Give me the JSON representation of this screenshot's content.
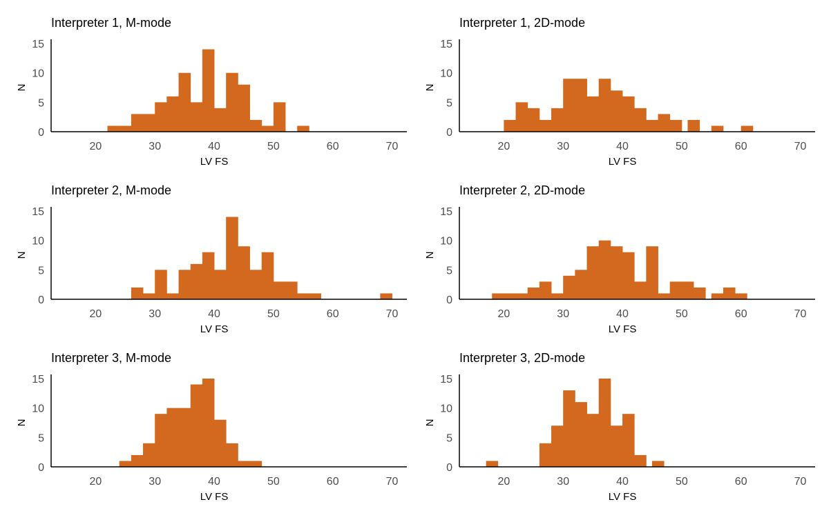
{
  "figure": {
    "bar_color": "#d2691e",
    "axis_color": "#000000",
    "tick_color": "#4d4d4d"
  },
  "chart_data": [
    {
      "type": "bar",
      "title": "Interpreter 1, M-mode",
      "xlabel": "LV FS",
      "ylabel": "N",
      "xlim": [
        12.5,
        72.5
      ],
      "ylim": [
        0,
        15
      ],
      "xticks": [
        20,
        30,
        40,
        50,
        60,
        70
      ],
      "yticks": [
        0,
        5,
        10,
        15
      ],
      "bin_width": 2,
      "bins": [
        [
          22,
          1
        ],
        [
          24,
          1
        ],
        [
          26,
          3
        ],
        [
          28,
          3
        ],
        [
          30,
          5
        ],
        [
          32,
          6
        ],
        [
          34,
          10
        ],
        [
          36,
          5
        ],
        [
          38,
          14
        ],
        [
          40,
          4
        ],
        [
          42,
          10
        ],
        [
          44,
          8
        ],
        [
          46,
          2
        ],
        [
          48,
          1
        ],
        [
          50,
          5
        ],
        [
          54,
          1
        ]
      ]
    },
    {
      "type": "bar",
      "title": "Interpreter 1, 2D-mode",
      "xlabel": "LV FS",
      "ylabel": "N",
      "xlim": [
        12.5,
        72.5
      ],
      "ylim": [
        0,
        15
      ],
      "xticks": [
        20,
        30,
        40,
        50,
        60,
        70
      ],
      "yticks": [
        0,
        5,
        10,
        15
      ],
      "bin_width": 2,
      "bins": [
        [
          20,
          2
        ],
        [
          22,
          5
        ],
        [
          24,
          4
        ],
        [
          26,
          2
        ],
        [
          28,
          4
        ],
        [
          30,
          9
        ],
        [
          32,
          9
        ],
        [
          34,
          6
        ],
        [
          36,
          9
        ],
        [
          38,
          7
        ],
        [
          40,
          6
        ],
        [
          42,
          4
        ],
        [
          44,
          2
        ],
        [
          46,
          3
        ],
        [
          48,
          2
        ],
        [
          51,
          2
        ],
        [
          55,
          1
        ],
        [
          60,
          1
        ]
      ]
    },
    {
      "type": "bar",
      "title": "Interpreter 2, M-mode",
      "xlabel": "LV FS",
      "ylabel": "N",
      "xlim": [
        12.5,
        72.5
      ],
      "ylim": [
        0,
        15
      ],
      "xticks": [
        20,
        30,
        40,
        50,
        60,
        70
      ],
      "yticks": [
        0,
        5,
        10,
        15
      ],
      "bin_width": 2,
      "bins": [
        [
          26,
          2
        ],
        [
          28,
          1
        ],
        [
          30,
          5
        ],
        [
          32,
          1
        ],
        [
          34,
          5
        ],
        [
          36,
          6
        ],
        [
          38,
          8
        ],
        [
          40,
          5
        ],
        [
          42,
          14
        ],
        [
          44,
          9
        ],
        [
          46,
          5
        ],
        [
          48,
          8
        ],
        [
          50,
          3
        ],
        [
          52,
          3
        ],
        [
          54,
          1
        ],
        [
          56,
          1
        ],
        [
          68,
          1
        ]
      ]
    },
    {
      "type": "bar",
      "title": "Interpreter 2, 2D-mode",
      "xlabel": "LV FS",
      "ylabel": "N",
      "xlim": [
        12.5,
        72.5
      ],
      "ylim": [
        0,
        15
      ],
      "xticks": [
        20,
        30,
        40,
        50,
        60,
        70
      ],
      "yticks": [
        0,
        5,
        10,
        15
      ],
      "bin_width": 2,
      "bins": [
        [
          18,
          1
        ],
        [
          20,
          1
        ],
        [
          22,
          1
        ],
        [
          24,
          2
        ],
        [
          26,
          3
        ],
        [
          28,
          1
        ],
        [
          30,
          4
        ],
        [
          32,
          5
        ],
        [
          34,
          9
        ],
        [
          36,
          10
        ],
        [
          38,
          9
        ],
        [
          40,
          8
        ],
        [
          42,
          3
        ],
        [
          44,
          9
        ],
        [
          46,
          1
        ],
        [
          48,
          3
        ],
        [
          50,
          3
        ],
        [
          52,
          2
        ],
        [
          55,
          1
        ],
        [
          57,
          2
        ],
        [
          59,
          1
        ]
      ]
    },
    {
      "type": "bar",
      "title": "Interpreter 3, M-mode",
      "xlabel": "LV FS",
      "ylabel": "N",
      "xlim": [
        12.5,
        72.5
      ],
      "ylim": [
        0,
        15
      ],
      "xticks": [
        20,
        30,
        40,
        50,
        60,
        70
      ],
      "yticks": [
        0,
        5,
        10,
        15
      ],
      "bin_width": 2,
      "bins": [
        [
          24,
          1
        ],
        [
          26,
          2
        ],
        [
          28,
          4
        ],
        [
          30,
          9
        ],
        [
          32,
          10
        ],
        [
          34,
          10
        ],
        [
          36,
          14
        ],
        [
          38,
          15
        ],
        [
          40,
          8
        ],
        [
          42,
          4
        ],
        [
          44,
          1
        ],
        [
          46,
          1
        ]
      ]
    },
    {
      "type": "bar",
      "title": "Interpreter 3, 2D-mode",
      "xlabel": "LV FS",
      "ylabel": "N",
      "xlim": [
        12.5,
        72.5
      ],
      "ylim": [
        0,
        15
      ],
      "xticks": [
        20,
        30,
        40,
        50,
        60,
        70
      ],
      "yticks": [
        0,
        5,
        10,
        15
      ],
      "bin_width": 2,
      "bins": [
        [
          17,
          1
        ],
        [
          26,
          4
        ],
        [
          28,
          7
        ],
        [
          30,
          13
        ],
        [
          32,
          11
        ],
        [
          34,
          9
        ],
        [
          36,
          15
        ],
        [
          38,
          7
        ],
        [
          40,
          9
        ],
        [
          42,
          2
        ],
        [
          45,
          1
        ]
      ]
    }
  ]
}
